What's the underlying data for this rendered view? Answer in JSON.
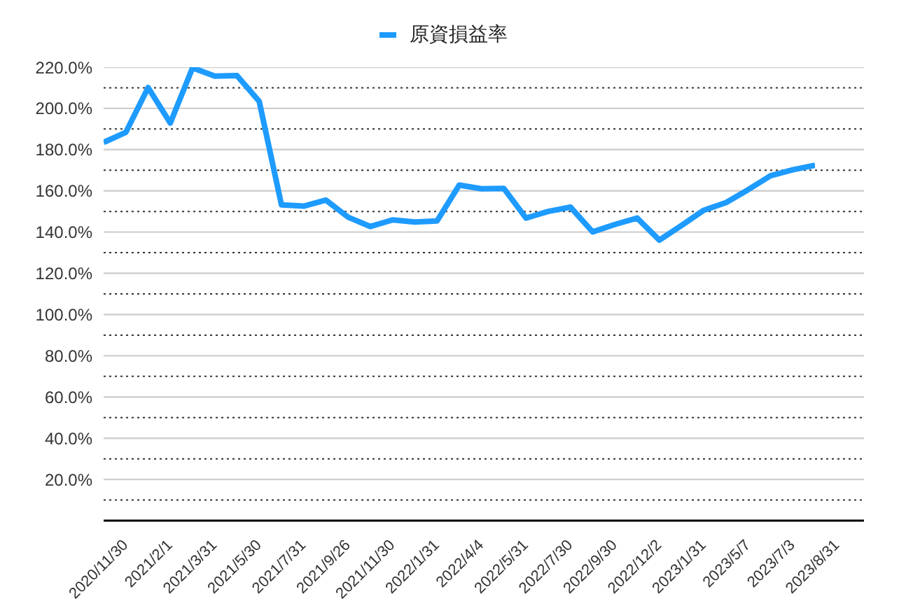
{
  "chart_data": {
    "type": "line",
    "categories": [
      "2020/11/30",
      null,
      "2021/2/1",
      null,
      "2021/3/31",
      null,
      "2021/5/30",
      null,
      "2021/7/31",
      null,
      "2021/9/26",
      null,
      "2021/11/30",
      null,
      "2022/1/31",
      null,
      "2022/4/4",
      null,
      "2022/5/31",
      null,
      "2022/7/30",
      null,
      "2022/9/30",
      null,
      "2022/12/2",
      null,
      "2023/1/31",
      null,
      "2023/5/7",
      null,
      "2023/7/3",
      null,
      "2023/8/31"
    ],
    "series": [
      {
        "name": "原資損益率",
        "color": "#1e9bff",
        "values": [
          183.5,
          188.4,
          210.1,
          192.9,
          219.7,
          215.7,
          215.9,
          203.4,
          153.2,
          152.6,
          155.5,
          147.2,
          142.7,
          145.9,
          144.9,
          145.4,
          162.8,
          161.0,
          161.2,
          146.8,
          150.0,
          152.1,
          140.1,
          143.7,
          146.8,
          136.1,
          143.2,
          150.6,
          154.3,
          160.6,
          167.3,
          170.2,
          172.4
        ]
      }
    ],
    "ylim": [
      0,
      220
    ],
    "yticks": [
      {
        "value": 10,
        "label": null
      },
      {
        "value": 20,
        "label": "20.0%"
      },
      {
        "value": 30,
        "label": null
      },
      {
        "value": 40,
        "label": "40.0%"
      },
      {
        "value": 50,
        "label": null
      },
      {
        "value": 60,
        "label": "60.0%"
      },
      {
        "value": 70,
        "label": null
      },
      {
        "value": 80,
        "label": "80.0%"
      },
      {
        "value": 90,
        "label": null
      },
      {
        "value": 100,
        "label": "100.0%"
      },
      {
        "value": 110,
        "label": null
      },
      {
        "value": 120,
        "label": "120.0%"
      },
      {
        "value": 130,
        "label": null
      },
      {
        "value": 140,
        "label": "140.0%"
      },
      {
        "value": 150,
        "label": null
      },
      {
        "value": 160,
        "label": "160.0%"
      },
      {
        "value": 170,
        "label": null
      },
      {
        "value": 180,
        "label": "180.0%"
      },
      {
        "value": 190,
        "label": null
      },
      {
        "value": 200,
        "label": "200.0%"
      },
      {
        "value": 210,
        "label": null
      },
      {
        "value": 220,
        "label": "220.0%"
      }
    ],
    "grid": "y",
    "legend": "top",
    "marker": "none",
    "line_style": "solid"
  }
}
